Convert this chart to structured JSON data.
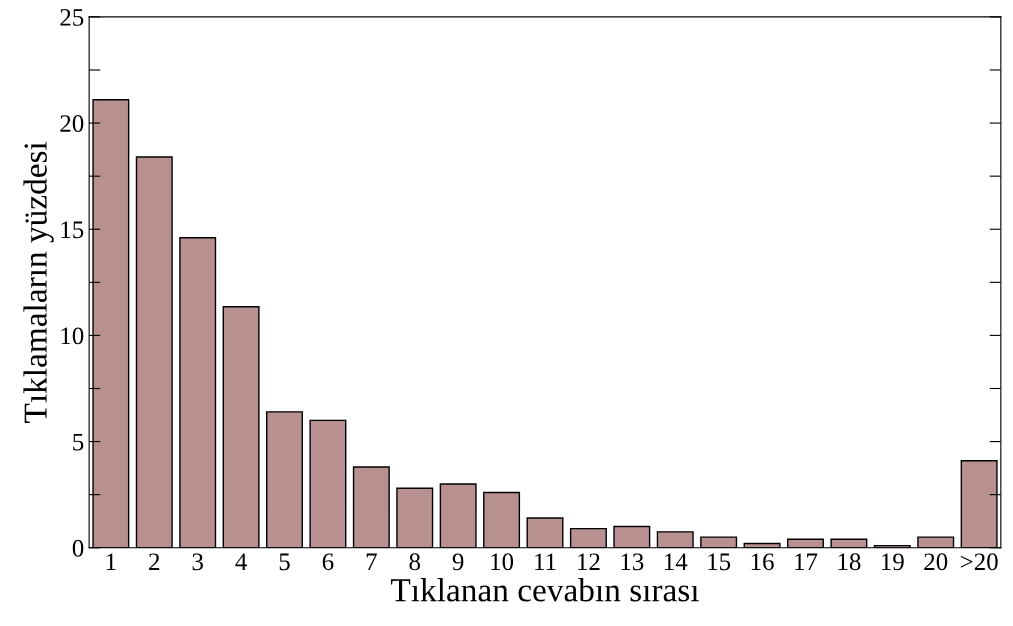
{
  "chart_data": {
    "type": "bar",
    "xlabel": "Tıklanan cevabın sırası",
    "ylabel": "Tıklamaların yüzdesi",
    "categories": [
      "1",
      "2",
      "3",
      "4",
      "5",
      "6",
      "7",
      "8",
      "9",
      "10",
      "11",
      "12",
      "13",
      "14",
      "15",
      "16",
      "17",
      "18",
      "19",
      "20",
      ">20"
    ],
    "values": [
      21.1,
      18.4,
      14.6,
      11.35,
      6.4,
      6.0,
      3.8,
      2.8,
      3.0,
      2.6,
      1.4,
      0.9,
      1.0,
      0.75,
      0.5,
      0.2,
      0.4,
      0.4,
      0.1,
      0.5,
      4.1
    ],
    "color": "#b89090",
    "ylim": [
      0,
      25
    ],
    "yticks": [
      0,
      {
        "value": 2.5,
        "label": null
      },
      5,
      {
        "value": 7.5,
        "label": null
      },
      10,
      {
        "value": 12.5,
        "label": null
      },
      15,
      {
        "value": 17.5,
        "label": null
      },
      20,
      {
        "value": 22.5,
        "label": null
      },
      25
    ],
    "grid": false,
    "legend": false
  }
}
